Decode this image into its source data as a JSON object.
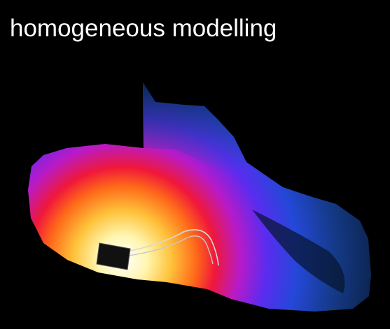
{
  "title": "homogeneous modelling"
}
